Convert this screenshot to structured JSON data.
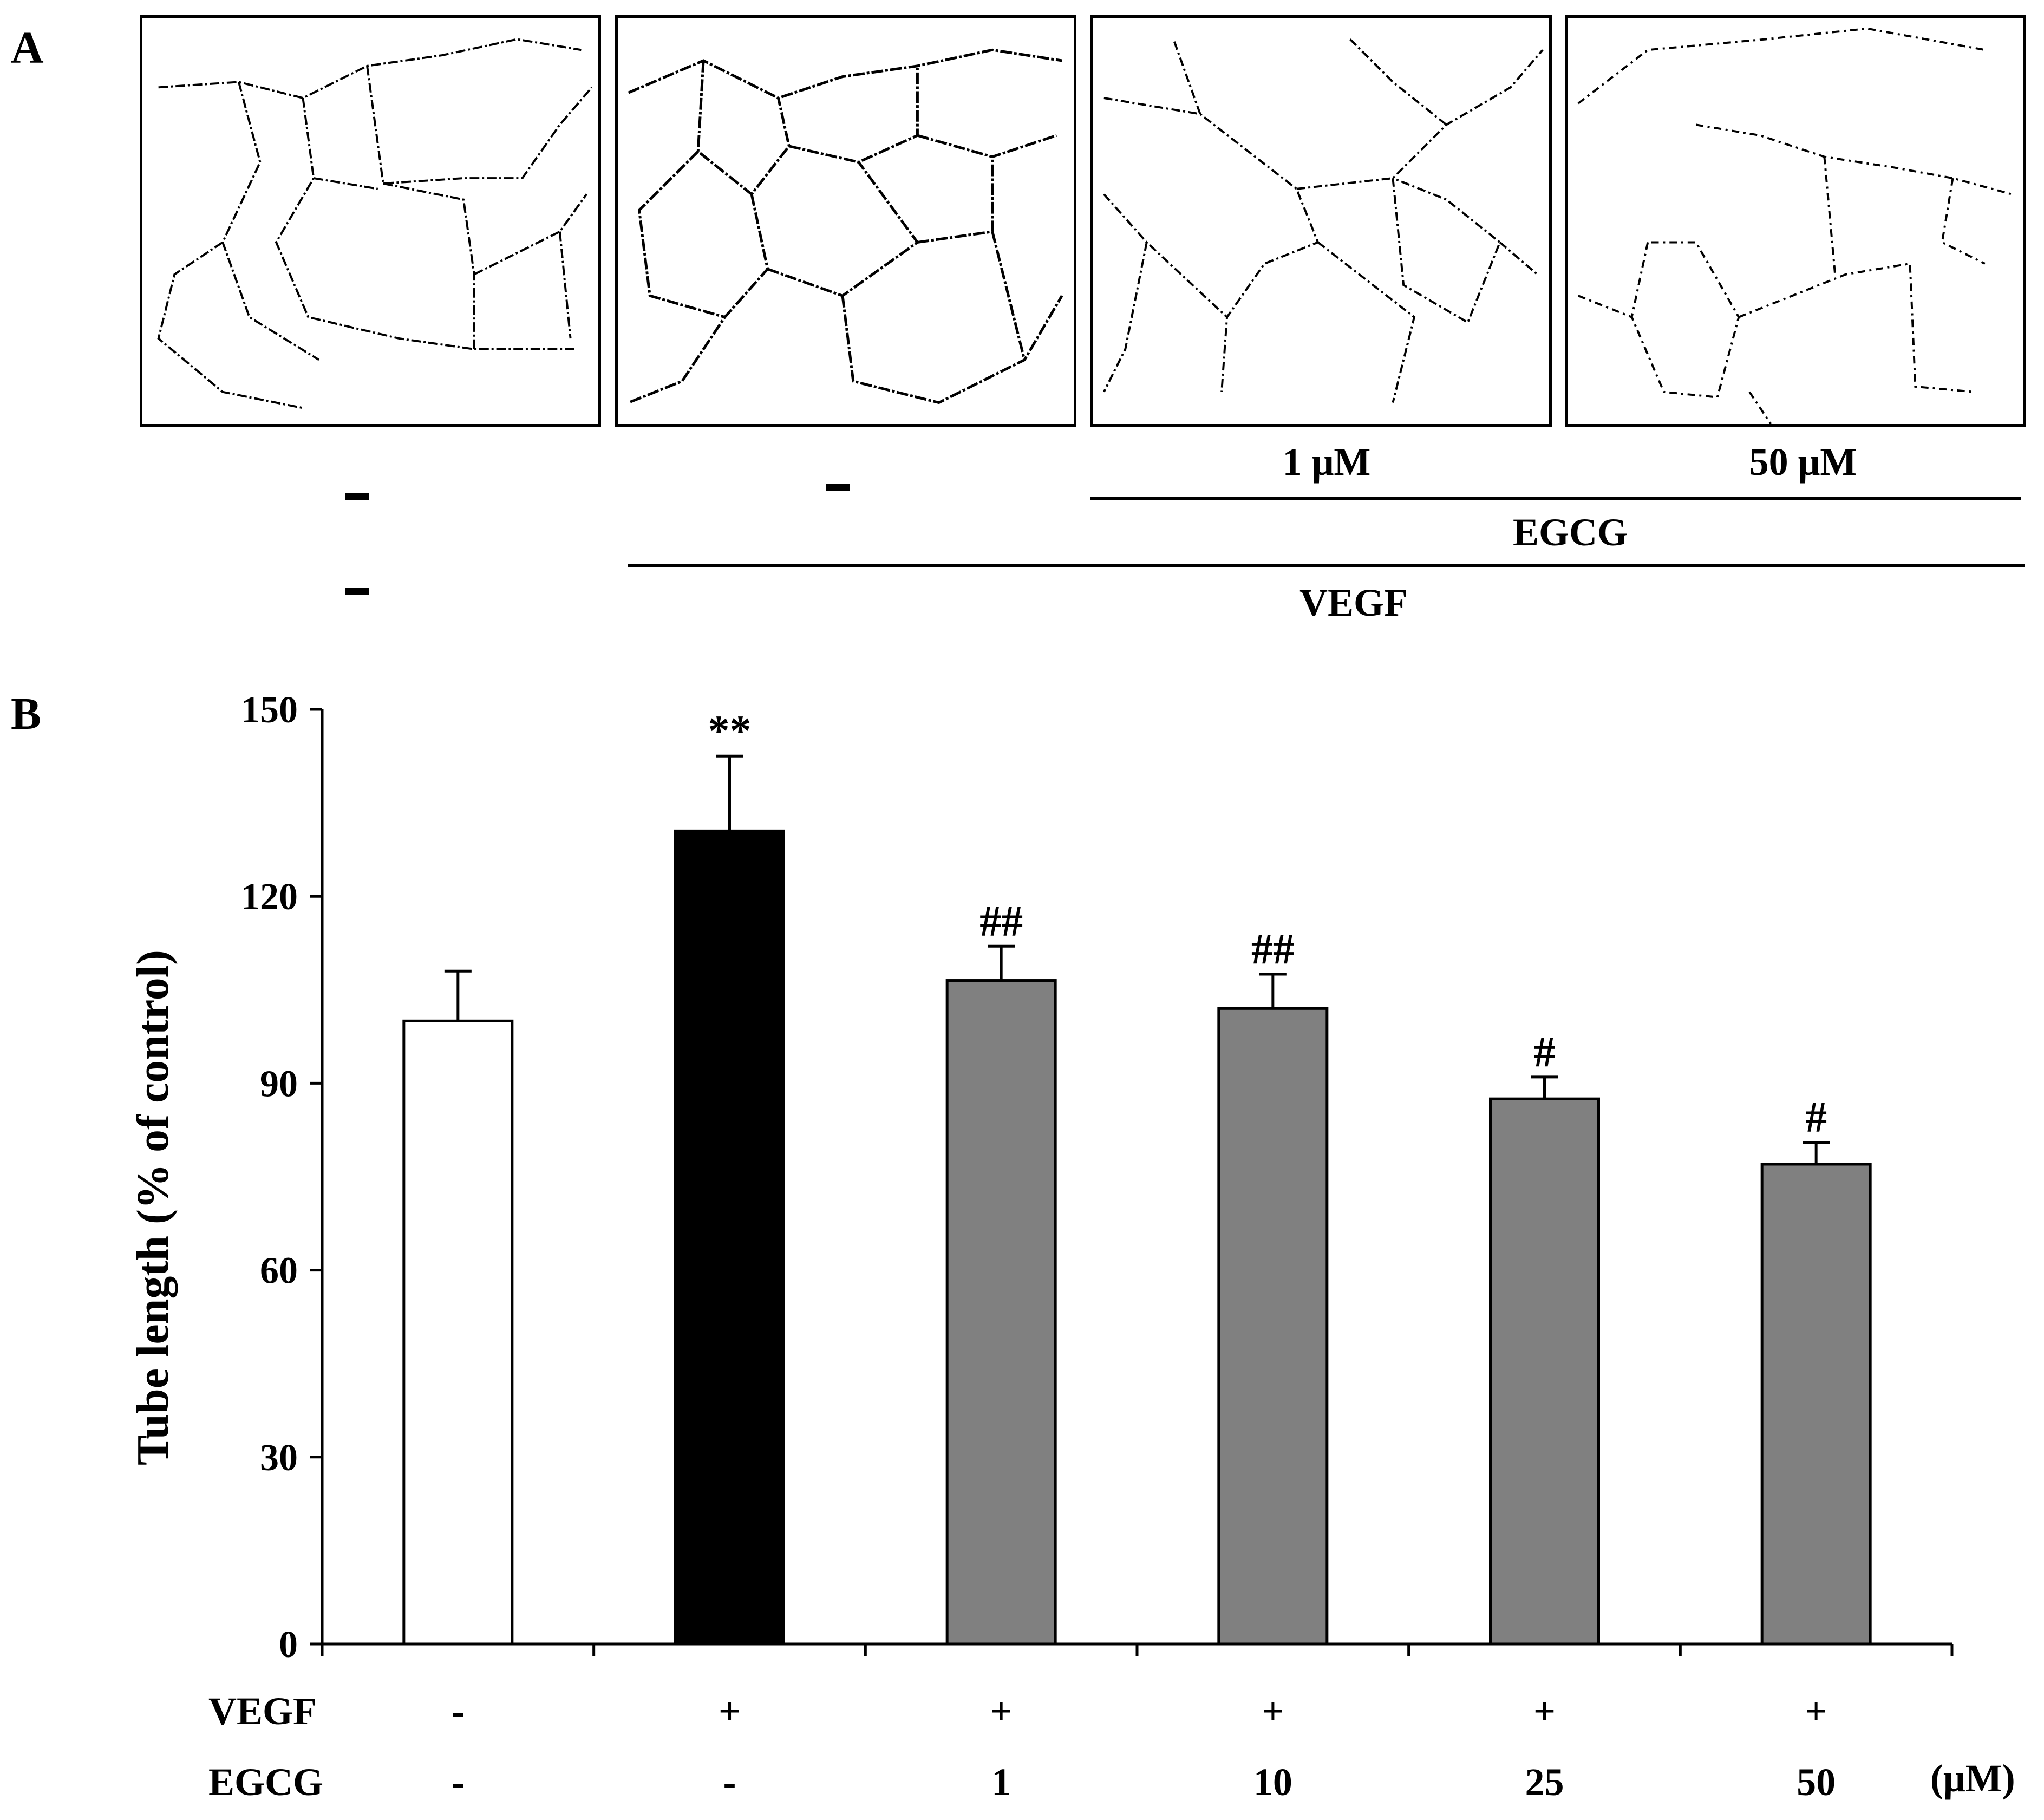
{
  "panel_a": {
    "letter": "A",
    "micrographs": [
      {
        "description": "control"
      },
      {
        "description": "VEGF"
      },
      {
        "description": "VEGF + EGCG 1 µM"
      },
      {
        "description": "VEGF + EGCG 50 µM"
      }
    ],
    "dash_symbol": "-",
    "egcg_doses": [
      "1 μM",
      "50 μM"
    ],
    "egcg_label": "EGCG",
    "vegf_label": "VEGF"
  },
  "panel_b": {
    "letter": "B",
    "row_labels": {
      "vegf": "VEGF",
      "egcg": "EGCG",
      "unit": "(μM)"
    },
    "vegf_marks": [
      "-",
      "+",
      "+",
      "+",
      "+",
      "+"
    ],
    "egcg_marks": [
      "-",
      "-",
      "1",
      "10",
      "25",
      "50"
    ]
  },
  "chart_data": {
    "type": "bar",
    "title": "",
    "xlabel": "",
    "ylabel": "Tube length (% of control)",
    "ylim": [
      0,
      150
    ],
    "yticks": [
      0,
      30,
      60,
      90,
      120,
      150
    ],
    "categories": [
      "control",
      "VEGF",
      "VEGF + EGCG 1",
      "VEGF + EGCG 10",
      "VEGF + EGCG 25",
      "VEGF + EGCG 50"
    ],
    "values": [
      100,
      130.5,
      106.5,
      102,
      87.5,
      77
    ],
    "errors": [
      8,
      12,
      5.5,
      5.5,
      3.5,
      3.5
    ],
    "annotations": [
      "",
      "**",
      "##",
      "##",
      "#",
      "#"
    ],
    "bar_colors": [
      "#ffffff",
      "#000000",
      "#808080",
      "#808080",
      "#808080",
      "#808080"
    ]
  }
}
